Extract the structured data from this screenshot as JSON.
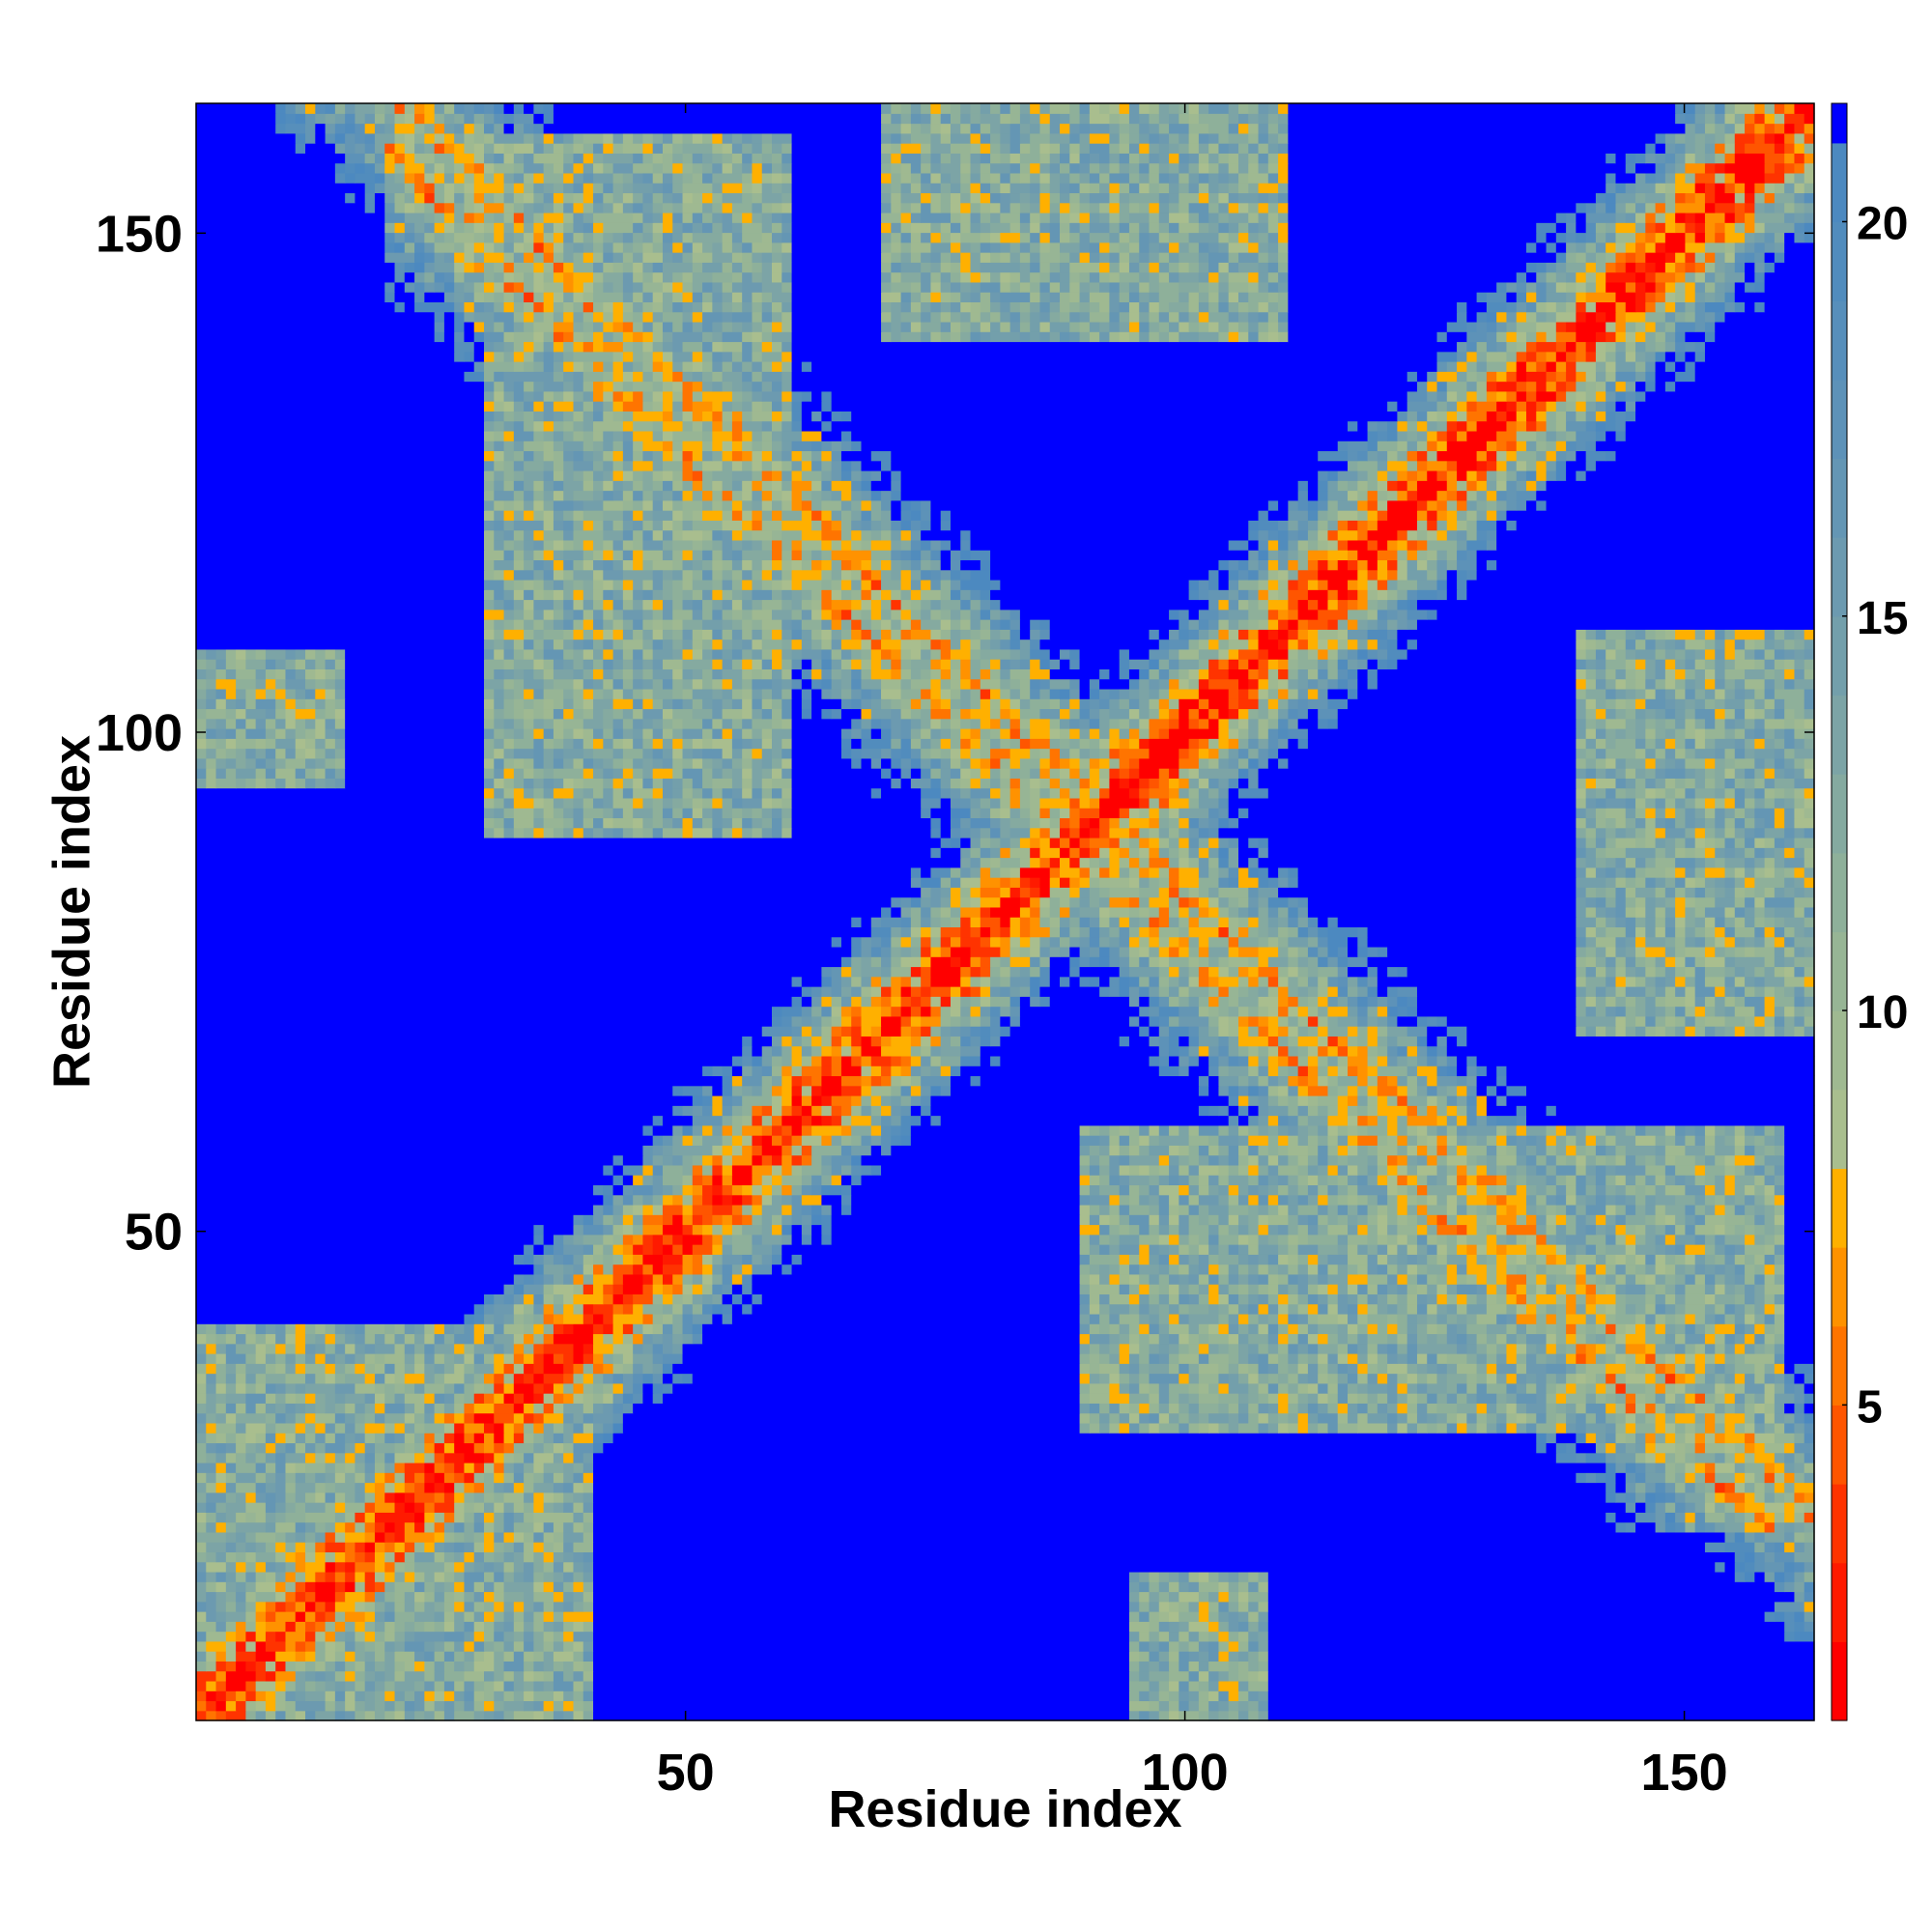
{
  "chart_data": {
    "type": "heatmap",
    "title": "",
    "xlabel": "Residue index",
    "ylabel": "Residue index",
    "n_residues": 163,
    "xlim": [
      1,
      163
    ],
    "ylim": [
      1,
      163
    ],
    "x_ticks": [
      {
        "value": 50,
        "label": "50"
      },
      {
        "value": 100,
        "label": "100"
      },
      {
        "value": 150,
        "label": "150"
      }
    ],
    "y_ticks": [
      {
        "value": 50,
        "label": "50"
      },
      {
        "value": 100,
        "label": "100"
      },
      {
        "value": 150,
        "label": "150"
      }
    ],
    "colorbar": {
      "range": [
        1,
        21.5
      ],
      "ticks": [
        {
          "value": 5,
          "label": "5"
        },
        {
          "value": 10,
          "label": "10"
        },
        {
          "value": 15,
          "label": "15"
        },
        {
          "value": 20,
          "label": "20"
        }
      ],
      "colors": [
        {
          "max": 2,
          "color": "#ff0000"
        },
        {
          "max": 3,
          "color": "#ff1a00"
        },
        {
          "max": 4,
          "color": "#ff3300"
        },
        {
          "max": 5,
          "color": "#ff5500"
        },
        {
          "max": 6,
          "color": "#ff7400"
        },
        {
          "max": 7,
          "color": "#ff9200"
        },
        {
          "max": 8,
          "color": "#ffb000"
        },
        {
          "max": 9,
          "color": "#a9be8e"
        },
        {
          "max": 10,
          "color": "#9fb991"
        },
        {
          "max": 11,
          "color": "#97b595"
        },
        {
          "max": 12,
          "color": "#8eb09a"
        },
        {
          "max": 13,
          "color": "#85aaa0"
        },
        {
          "max": 14,
          "color": "#7ca4a6"
        },
        {
          "max": 15,
          "color": "#739fab"
        },
        {
          "max": 16,
          "color": "#6c9ab0"
        },
        {
          "max": 17,
          "color": "#6496b4"
        },
        {
          "max": 18,
          "color": "#5d92b8"
        },
        {
          "max": 19,
          "color": "#578fbb"
        },
        {
          "max": 20,
          "color": "#518cbd"
        },
        {
          "max": 21,
          "color": "#4c89c0"
        },
        {
          "max": 99,
          "color": "#0000ff"
        }
      ]
    },
    "contact_bands": [
      {
        "kind": "diagonal",
        "offset": 0,
        "width": 7
      },
      {
        "kind": "anti",
        "center_sum": 184,
        "from": 2,
        "to": 130,
        "width": 9
      },
      {
        "kind": "anti",
        "center_sum": 178,
        "from": 40,
        "to": 140,
        "width": 9
      },
      {
        "kind": "block",
        "x": [
          18,
          42
        ],
        "y": [
          30,
          40
        ]
      },
      {
        "kind": "block",
        "x": [
          100,
          150
        ],
        "y": [
          30,
          50
        ]
      },
      {
        "kind": "block",
        "x": [
          30,
          60
        ],
        "y": [
          90,
          160
        ]
      },
      {
        "kind": "block",
        "x": [
          140,
          163
        ],
        "y": [
          85,
          105
        ]
      },
      {
        "kind": "block",
        "x": [
          70,
          110
        ],
        "y": [
          140,
          163
        ]
      },
      {
        "kind": "block",
        "x": [
          1,
          15
        ],
        "y": [
          95,
          108
        ]
      },
      {
        "kind": "block",
        "x": [
          1,
          40
        ],
        "y": [
          1,
          40
        ]
      }
    ]
  }
}
